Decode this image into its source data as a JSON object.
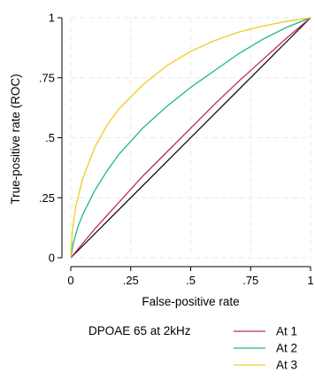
{
  "chart_data": {
    "type": "line",
    "title": "",
    "xlabel": "False-positive rate",
    "ylabel": "True-positive rate (ROC)",
    "xlim": [
      0,
      1
    ],
    "ylim": [
      0,
      1
    ],
    "xticks": [
      0,
      0.25,
      0.5,
      0.75,
      1
    ],
    "xtick_labels": [
      "0",
      ".25",
      ".5",
      ".75",
      "1"
    ],
    "yticks": [
      0,
      0.25,
      0.5,
      0.75,
      1
    ],
    "ytick_labels": [
      "0",
      ".25",
      ".5",
      ".75",
      "1"
    ],
    "grid": true,
    "legend_position": "bottom",
    "legend_title": "DPOAE 65 at 2kHz",
    "reference_line": {
      "x": [
        0,
        1
      ],
      "y": [
        0,
        1
      ],
      "color": "#000000"
    },
    "series": [
      {
        "name": "At 1",
        "color": "#c4275f",
        "x": [
          0,
          0.05,
          0.1,
          0.2,
          0.3,
          0.4,
          0.5,
          0.6,
          0.7,
          0.8,
          0.9,
          1
        ],
        "y": [
          0,
          0.06,
          0.12,
          0.23,
          0.34,
          0.44,
          0.54,
          0.64,
          0.735,
          0.825,
          0.915,
          1
        ]
      },
      {
        "name": "At 2",
        "color": "#1ab98a",
        "x": [
          0,
          0.01,
          0.03,
          0.05,
          0.1,
          0.15,
          0.2,
          0.3,
          0.4,
          0.5,
          0.6,
          0.7,
          0.8,
          0.9,
          1
        ],
        "y": [
          0,
          0.06,
          0.13,
          0.18,
          0.28,
          0.36,
          0.43,
          0.54,
          0.63,
          0.71,
          0.78,
          0.85,
          0.91,
          0.96,
          1
        ]
      },
      {
        "name": "At 3",
        "color": "#f2cc1c",
        "x": [
          0,
          0.005,
          0.01,
          0.02,
          0.05,
          0.1,
          0.15,
          0.2,
          0.3,
          0.4,
          0.5,
          0.6,
          0.7,
          0.8,
          0.9,
          1
        ],
        "y": [
          0,
          0.09,
          0.14,
          0.21,
          0.33,
          0.46,
          0.55,
          0.62,
          0.72,
          0.8,
          0.86,
          0.905,
          0.94,
          0.965,
          0.985,
          1
        ]
      }
    ]
  }
}
